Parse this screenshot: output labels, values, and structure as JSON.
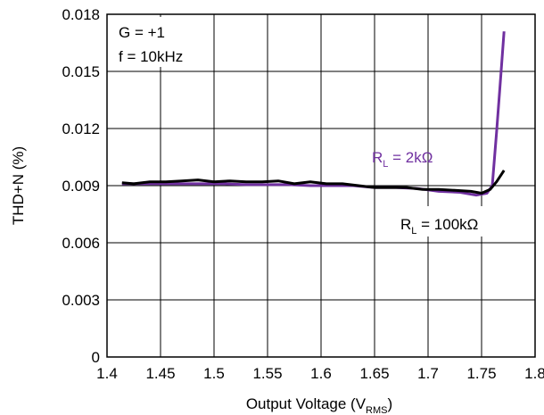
{
  "chart_data": {
    "type": "line",
    "xlabel": "Output Voltage (V",
    "xlabel_sub": "RMS",
    "xlabel_end": ")",
    "ylabel": "THD+N (%)",
    "xlim": [
      1.4,
      1.8
    ],
    "ylim": [
      0,
      0.018
    ],
    "x_ticks": [
      1.4,
      1.45,
      1.5,
      1.55,
      1.6,
      1.65,
      1.7,
      1.75,
      1.8
    ],
    "x_tick_labels": [
      "1.4",
      "1.45",
      "1.5",
      "1.55",
      "1.6",
      "1.65",
      "1.7",
      "1.75",
      "1.8"
    ],
    "y_ticks": [
      0,
      0.003,
      0.006,
      0.009,
      0.012,
      0.015,
      0.018
    ],
    "y_tick_labels": [
      "0",
      "0.003",
      "0.006",
      "0.009",
      "0.012",
      "0.015",
      "0.018"
    ],
    "grid": true,
    "annotations": {
      "gain": "G = +1",
      "freq": "f = 10kHz"
    },
    "series": [
      {
        "name": "R",
        "name_sub": "L",
        "name_rest": " = 2kΩ",
        "color": "#7030A0",
        "x": [
          1.414,
          1.43,
          1.45,
          1.47,
          1.49,
          1.51,
          1.53,
          1.55,
          1.57,
          1.59,
          1.61,
          1.63,
          1.65,
          1.67,
          1.69,
          1.71,
          1.73,
          1.745,
          1.755,
          1.76,
          1.764,
          1.768,
          1.771
        ],
        "y": [
          0.0091,
          0.0091,
          0.0091,
          0.0091,
          0.0091,
          0.0091,
          0.00905,
          0.00905,
          0.00905,
          0.009,
          0.009,
          0.009,
          0.0089,
          0.0089,
          0.00885,
          0.0087,
          0.00865,
          0.0085,
          0.0086,
          0.009,
          0.0118,
          0.0148,
          0.0171
        ]
      },
      {
        "name": "R",
        "name_sub": "L",
        "name_rest": " = 100kΩ",
        "color": "#000000",
        "x": [
          1.414,
          1.425,
          1.44,
          1.455,
          1.47,
          1.485,
          1.5,
          1.515,
          1.53,
          1.545,
          1.56,
          1.575,
          1.59,
          1.605,
          1.62,
          1.635,
          1.65,
          1.665,
          1.68,
          1.695,
          1.71,
          1.725,
          1.74,
          1.75,
          1.758,
          1.764,
          1.771
        ],
        "y": [
          0.00915,
          0.0091,
          0.0092,
          0.0092,
          0.00925,
          0.0093,
          0.0092,
          0.00925,
          0.0092,
          0.0092,
          0.00925,
          0.0091,
          0.0092,
          0.0091,
          0.0091,
          0.009,
          0.0089,
          0.0089,
          0.0089,
          0.0088,
          0.0088,
          0.00875,
          0.0087,
          0.0086,
          0.0088,
          0.0092,
          0.0098
        ]
      }
    ]
  }
}
